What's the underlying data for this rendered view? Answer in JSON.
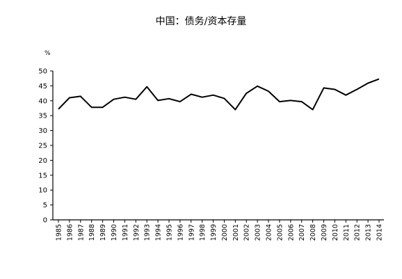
{
  "chart_data": {
    "type": "line",
    "title": "中国：债务/资本存量",
    "ylabel": "%",
    "xlabel": "",
    "ylim": [
      0,
      50
    ],
    "yticks": [
      0,
      5,
      10,
      15,
      20,
      25,
      30,
      35,
      40,
      45,
      50
    ],
    "grid": false,
    "categories": [
      "1985",
      "1986",
      "1987",
      "1988",
      "1989",
      "1990",
      "1991",
      "1992",
      "1993",
      "1994",
      "1995",
      "1996",
      "1997",
      "1998",
      "1999",
      "2000",
      "2001",
      "2002",
      "2003",
      "2004",
      "2005",
      "2006",
      "2007",
      "2008",
      "2009",
      "2010",
      "2011",
      "2012",
      "2013",
      "2014"
    ],
    "series": [
      {
        "values": [
          37.2,
          41.0,
          41.5,
          37.8,
          37.8,
          40.5,
          41.2,
          40.5,
          44.7,
          40.1,
          40.7,
          39.7,
          42.2,
          41.2,
          41.9,
          40.8,
          37.0,
          42.5,
          44.9,
          43.2,
          39.7,
          40.1,
          39.7,
          37.0,
          44.3,
          43.8,
          41.9,
          43.8,
          45.9,
          47.3
        ]
      }
    ],
    "colors": {
      "line": "#000000",
      "axis": "#000000"
    }
  }
}
